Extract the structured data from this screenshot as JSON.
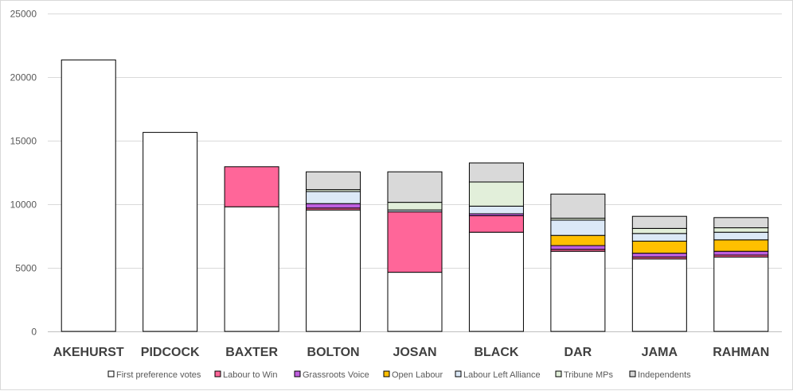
{
  "chart_data": {
    "type": "bar",
    "stacked": true,
    "title": "",
    "xlabel": "",
    "ylabel": "",
    "ylim": [
      0,
      25000
    ],
    "yticks": [
      0,
      5000,
      10000,
      15000,
      20000,
      25000
    ],
    "grid": true,
    "legend_position": "bottom",
    "categories": [
      "AKEHURST",
      "PIDCOCK",
      "BAXTER",
      "BOLTON",
      "JOSAN",
      "BLACK",
      "DAR",
      "JAMA",
      "RAHMAN"
    ],
    "series": [
      {
        "name": "First preference votes",
        "color": "#ffffff",
        "values": [
          21350,
          15650,
          9800,
          9550,
          4650,
          7800,
          6300,
          5700,
          5850
        ]
      },
      {
        "name": "Labour to Win",
        "color": "#ff6699",
        "values": [
          0,
          0,
          3150,
          150,
          4750,
          1300,
          150,
          150,
          150
        ]
      },
      {
        "name": "Grassroots Voice",
        "color": "#bf5fdf",
        "values": [
          0,
          0,
          0,
          350,
          0,
          150,
          300,
          300,
          300
        ]
      },
      {
        "name": "Open Labour",
        "color": "#ffc000",
        "values": [
          0,
          0,
          0,
          0,
          0,
          0,
          800,
          950,
          900
        ]
      },
      {
        "name": "Labour Left Alliance",
        "color": "#dce9f7",
        "values": [
          0,
          0,
          0,
          950,
          150,
          600,
          1200,
          600,
          600
        ]
      },
      {
        "name": "Tribune MPs",
        "color": "#e2efda",
        "values": [
          0,
          0,
          0,
          150,
          600,
          1900,
          150,
          400,
          350
        ]
      },
      {
        "name": "Independents",
        "color": "#d9d9d9",
        "values": [
          0,
          0,
          0,
          1400,
          2400,
          1500,
          1900,
          950,
          800
        ]
      }
    ]
  }
}
